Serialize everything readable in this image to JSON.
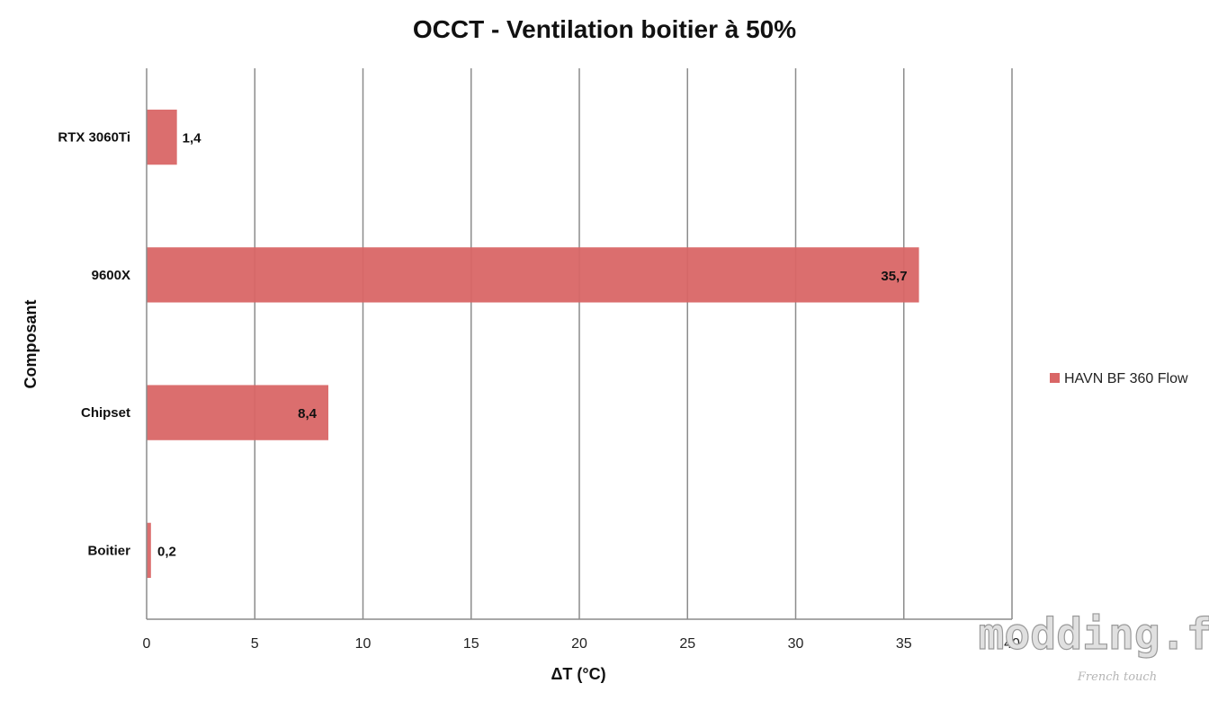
{
  "chart_data": {
    "type": "bar",
    "orientation": "horizontal",
    "title": "OCCT - Ventilation boitier à 50%",
    "xlabel": "ΔT (°C)",
    "ylabel": "Composant",
    "categories": [
      "RTX 3060Ti",
      "9600X",
      "Chipset",
      "Boitier"
    ],
    "series": [
      {
        "name": "HAVN BF 360 Flow",
        "values": [
          1.4,
          35.7,
          8.4,
          0.2
        ],
        "data_labels": [
          "1,4",
          "35,7",
          "8,4",
          "0,2"
        ],
        "color": "#d96666"
      }
    ],
    "xlim": [
      0,
      40
    ],
    "xticks": [
      0,
      5,
      10,
      15,
      20,
      25,
      30,
      35,
      40
    ],
    "grid": true,
    "legend_position": "right"
  },
  "watermark": {
    "logo_text": "modding.fr",
    "tagline": "French touch"
  }
}
